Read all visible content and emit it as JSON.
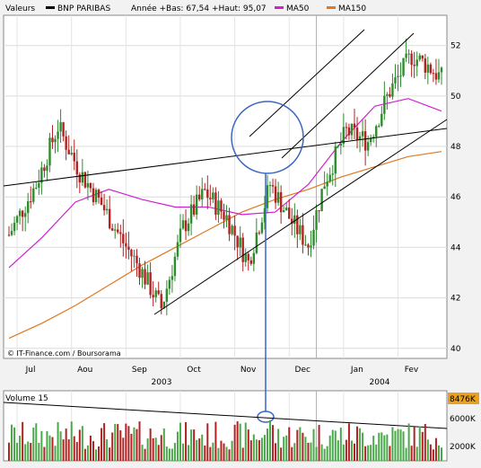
{
  "legend": {
    "label": "Valeurs",
    "series_name": "BNP PARIBAS",
    "range_text": "Année +Bas: 67,54 +Haut: 95,07",
    "ma50": "MA50",
    "ma150": "MA150"
  },
  "watermark": "© IT-Finance.com / Boursorama",
  "volume_title": "Volume 15",
  "colors": {
    "candle_up": "#2e8b2e",
    "candle_down": "#b22222",
    "ma50": "#d020d0",
    "ma150": "#e07820",
    "trendline": "#000000",
    "annotation": "#3a66c4",
    "volume_highlight": "#e8a020",
    "volume_bar": "#4aa84a"
  },
  "chart_data": [
    {
      "type": "candlestick",
      "y_ticks": [
        40,
        42,
        44,
        46,
        48,
        50,
        52
      ],
      "ylim": [
        39.6,
        53.2
      ],
      "x_months": [
        "Jul",
        "Aou",
        "Sep",
        "Oct",
        "Nov",
        "Dec",
        "Jan",
        "Fev"
      ],
      "x_years": [
        "2003",
        "2004"
      ],
      "grid": true,
      "series": [
        {
          "name": "BNP PARIBAS",
          "kind": "daily OHLC"
        },
        {
          "name": "MA50",
          "kind": "moving average"
        },
        {
          "name": "MA150",
          "kind": "moving average"
        }
      ],
      "ma50_approx": [
        43.2,
        44.4,
        45.8,
        46.3,
        45.9,
        45.6,
        45.6,
        45.3,
        45.4,
        46.5,
        48.2,
        49.6,
        49.9,
        49.4
      ],
      "ma150_approx": [
        40.4,
        41.0,
        41.7,
        42.5,
        43.3,
        44.0,
        44.7,
        45.4,
        45.9,
        46.3,
        46.8,
        47.2,
        47.6,
        47.8
      ]
    },
    {
      "type": "bar",
      "title": "Volume 15",
      "y_ticks": [
        "2000K",
        "6000K"
      ],
      "highlight_value": "8476K",
      "grid": true
    }
  ]
}
